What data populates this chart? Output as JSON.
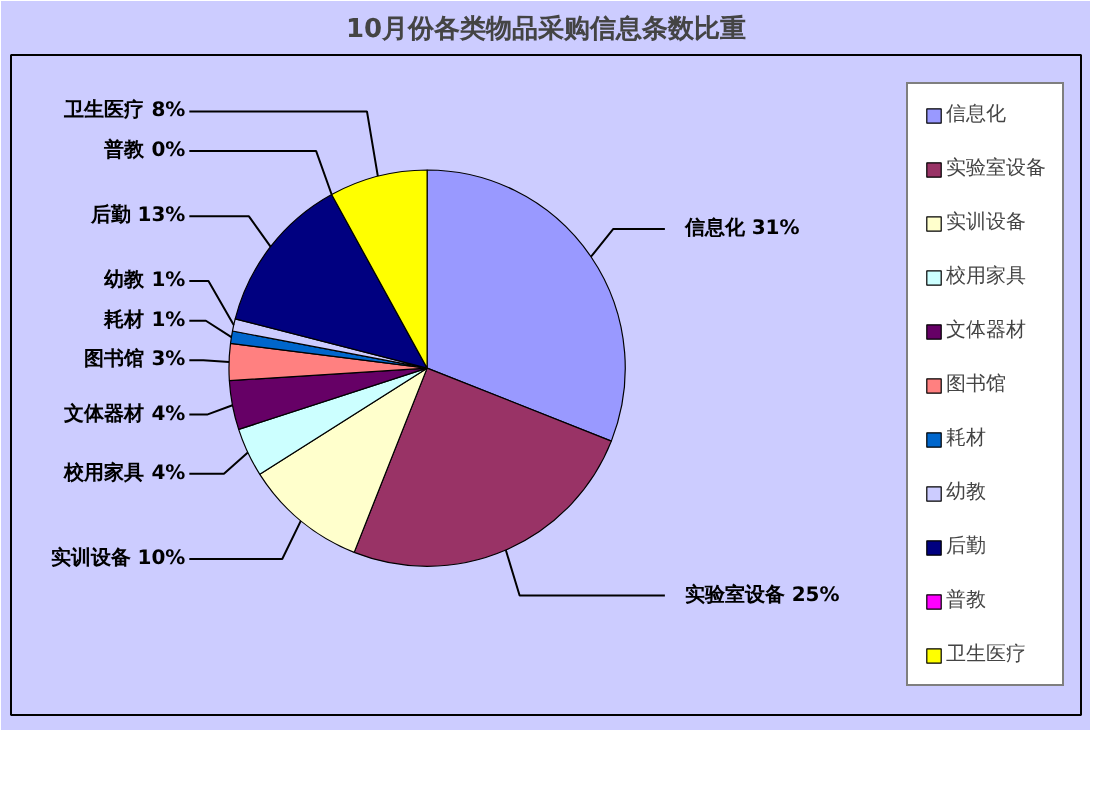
{
  "chart_data": {
    "type": "pie",
    "title": "10月份各类物品采购信息条数比重",
    "categories": [
      "信息化",
      "实验室设备",
      "实训设备",
      "校用家具",
      "文体器材",
      "图书馆",
      "耗材",
      "幼教",
      "后勤",
      "普教",
      "卫生医疗"
    ],
    "values": [
      31,
      25,
      10,
      4,
      4,
      3,
      1,
      1,
      13,
      0,
      8
    ],
    "value_labels": [
      "31%",
      "25%",
      "10%",
      "4%",
      "4%",
      "3%",
      "1%",
      "1%",
      "13%",
      "0%",
      "8%"
    ],
    "colors": [
      "#9999ff",
      "#993366",
      "#ffffcc",
      "#ccffff",
      "#660066",
      "#ff8080",
      "#0066cc",
      "#ccccff",
      "#000080",
      "#ff00ff",
      "#ffff00"
    ],
    "legend": "right"
  }
}
